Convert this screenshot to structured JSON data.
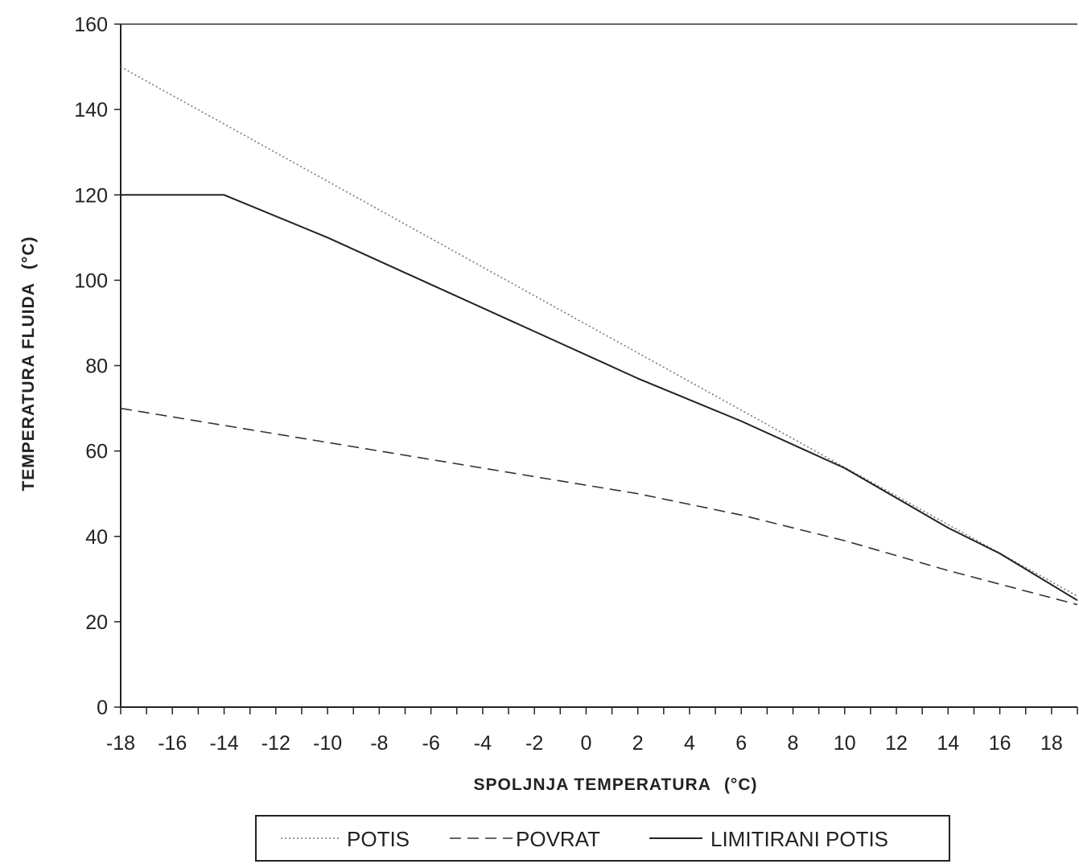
{
  "chart_data": {
    "type": "line",
    "title": "",
    "xlabel": "SPOLJNJA TEMPERATURA (°C)",
    "xlabel_main": "SPOLJNJA TEMPERATURA",
    "xlabel_unit": "(°C)",
    "ylabel": "TEMPERATURA FLUIDA (°C)",
    "ylabel_main": "TEMPERATURA FLUIDA",
    "ylabel_unit": "(°C)",
    "xlim": [
      -18,
      19
    ],
    "ylim": [
      0,
      160
    ],
    "x_tick_labels": [
      "-18",
      "-16",
      "-14",
      "-12",
      "-10",
      "-8",
      "-6",
      "-4",
      "-2",
      "0",
      "2",
      "4",
      "6",
      "8",
      "10",
      "12",
      "14",
      "16",
      "18"
    ],
    "x_tick_values": [
      -18,
      -16,
      -14,
      -12,
      -10,
      -8,
      -6,
      -4,
      -2,
      0,
      2,
      4,
      6,
      8,
      10,
      12,
      14,
      16,
      18
    ],
    "y_tick_labels": [
      "0",
      "20",
      "40",
      "60",
      "80",
      "100",
      "120",
      "140",
      "160"
    ],
    "y_tick_values": [
      0,
      20,
      40,
      60,
      80,
      100,
      120,
      140,
      160
    ],
    "grid": false,
    "legend_position": "bottom",
    "series": [
      {
        "name": "POTIS",
        "style": "dotted",
        "color": "#777777",
        "x": [
          -18,
          19
        ],
        "y": [
          150,
          26
        ]
      },
      {
        "name": "POVRAT",
        "style": "dashed",
        "color": "#333333",
        "x": [
          -18,
          -14,
          -10,
          -6,
          -2,
          2,
          6,
          10,
          14,
          19
        ],
        "y": [
          70,
          66,
          62,
          58,
          54,
          50,
          45,
          39,
          32,
          24
        ]
      },
      {
        "name": "LIMITIRANI POTIS",
        "style": "solid",
        "color": "#222222",
        "x": [
          -18,
          -14,
          -10,
          -6,
          -2,
          2,
          6,
          10,
          14,
          16,
          19
        ],
        "y": [
          120,
          120,
          110,
          99,
          88,
          77,
          67,
          56,
          42,
          36,
          25
        ]
      }
    ]
  }
}
